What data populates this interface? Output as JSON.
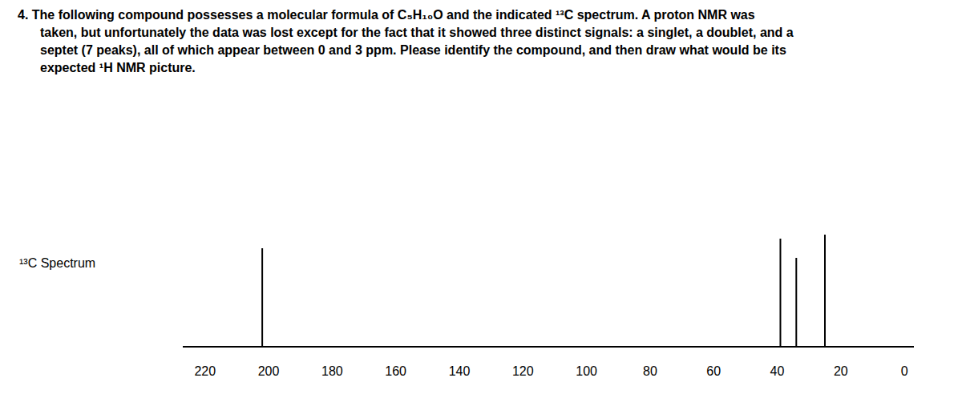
{
  "question": {
    "lines": [
      "4. The following compound possesses a molecular formula of C₅H₁₀O and the indicated ¹³C spectrum. A proton NMR was",
      "taken, but unfortunately the data was lost except for the fact that it showed three distinct signals: a singlet, a doublet, and a",
      "septet (7 peaks), all of which appear between 0 and 3 ppm. Please identify the compound, and then draw what would be its",
      "expected ¹H NMR picture."
    ]
  },
  "chart_data": {
    "type": "stick",
    "ylabel": "¹³C Spectrum",
    "x": [
      202,
      39,
      34,
      25
    ],
    "values": [
      122,
      134,
      110,
      139
    ],
    "color": "#000000",
    "xlim": [
      227,
      -3
    ],
    "xticks": [
      220,
      200,
      180,
      160,
      140,
      120,
      100,
      80,
      60,
      40,
      20,
      0
    ],
    "ylim": [
      0,
      162
    ],
    "grid": false,
    "tick_labels": "x"
  }
}
